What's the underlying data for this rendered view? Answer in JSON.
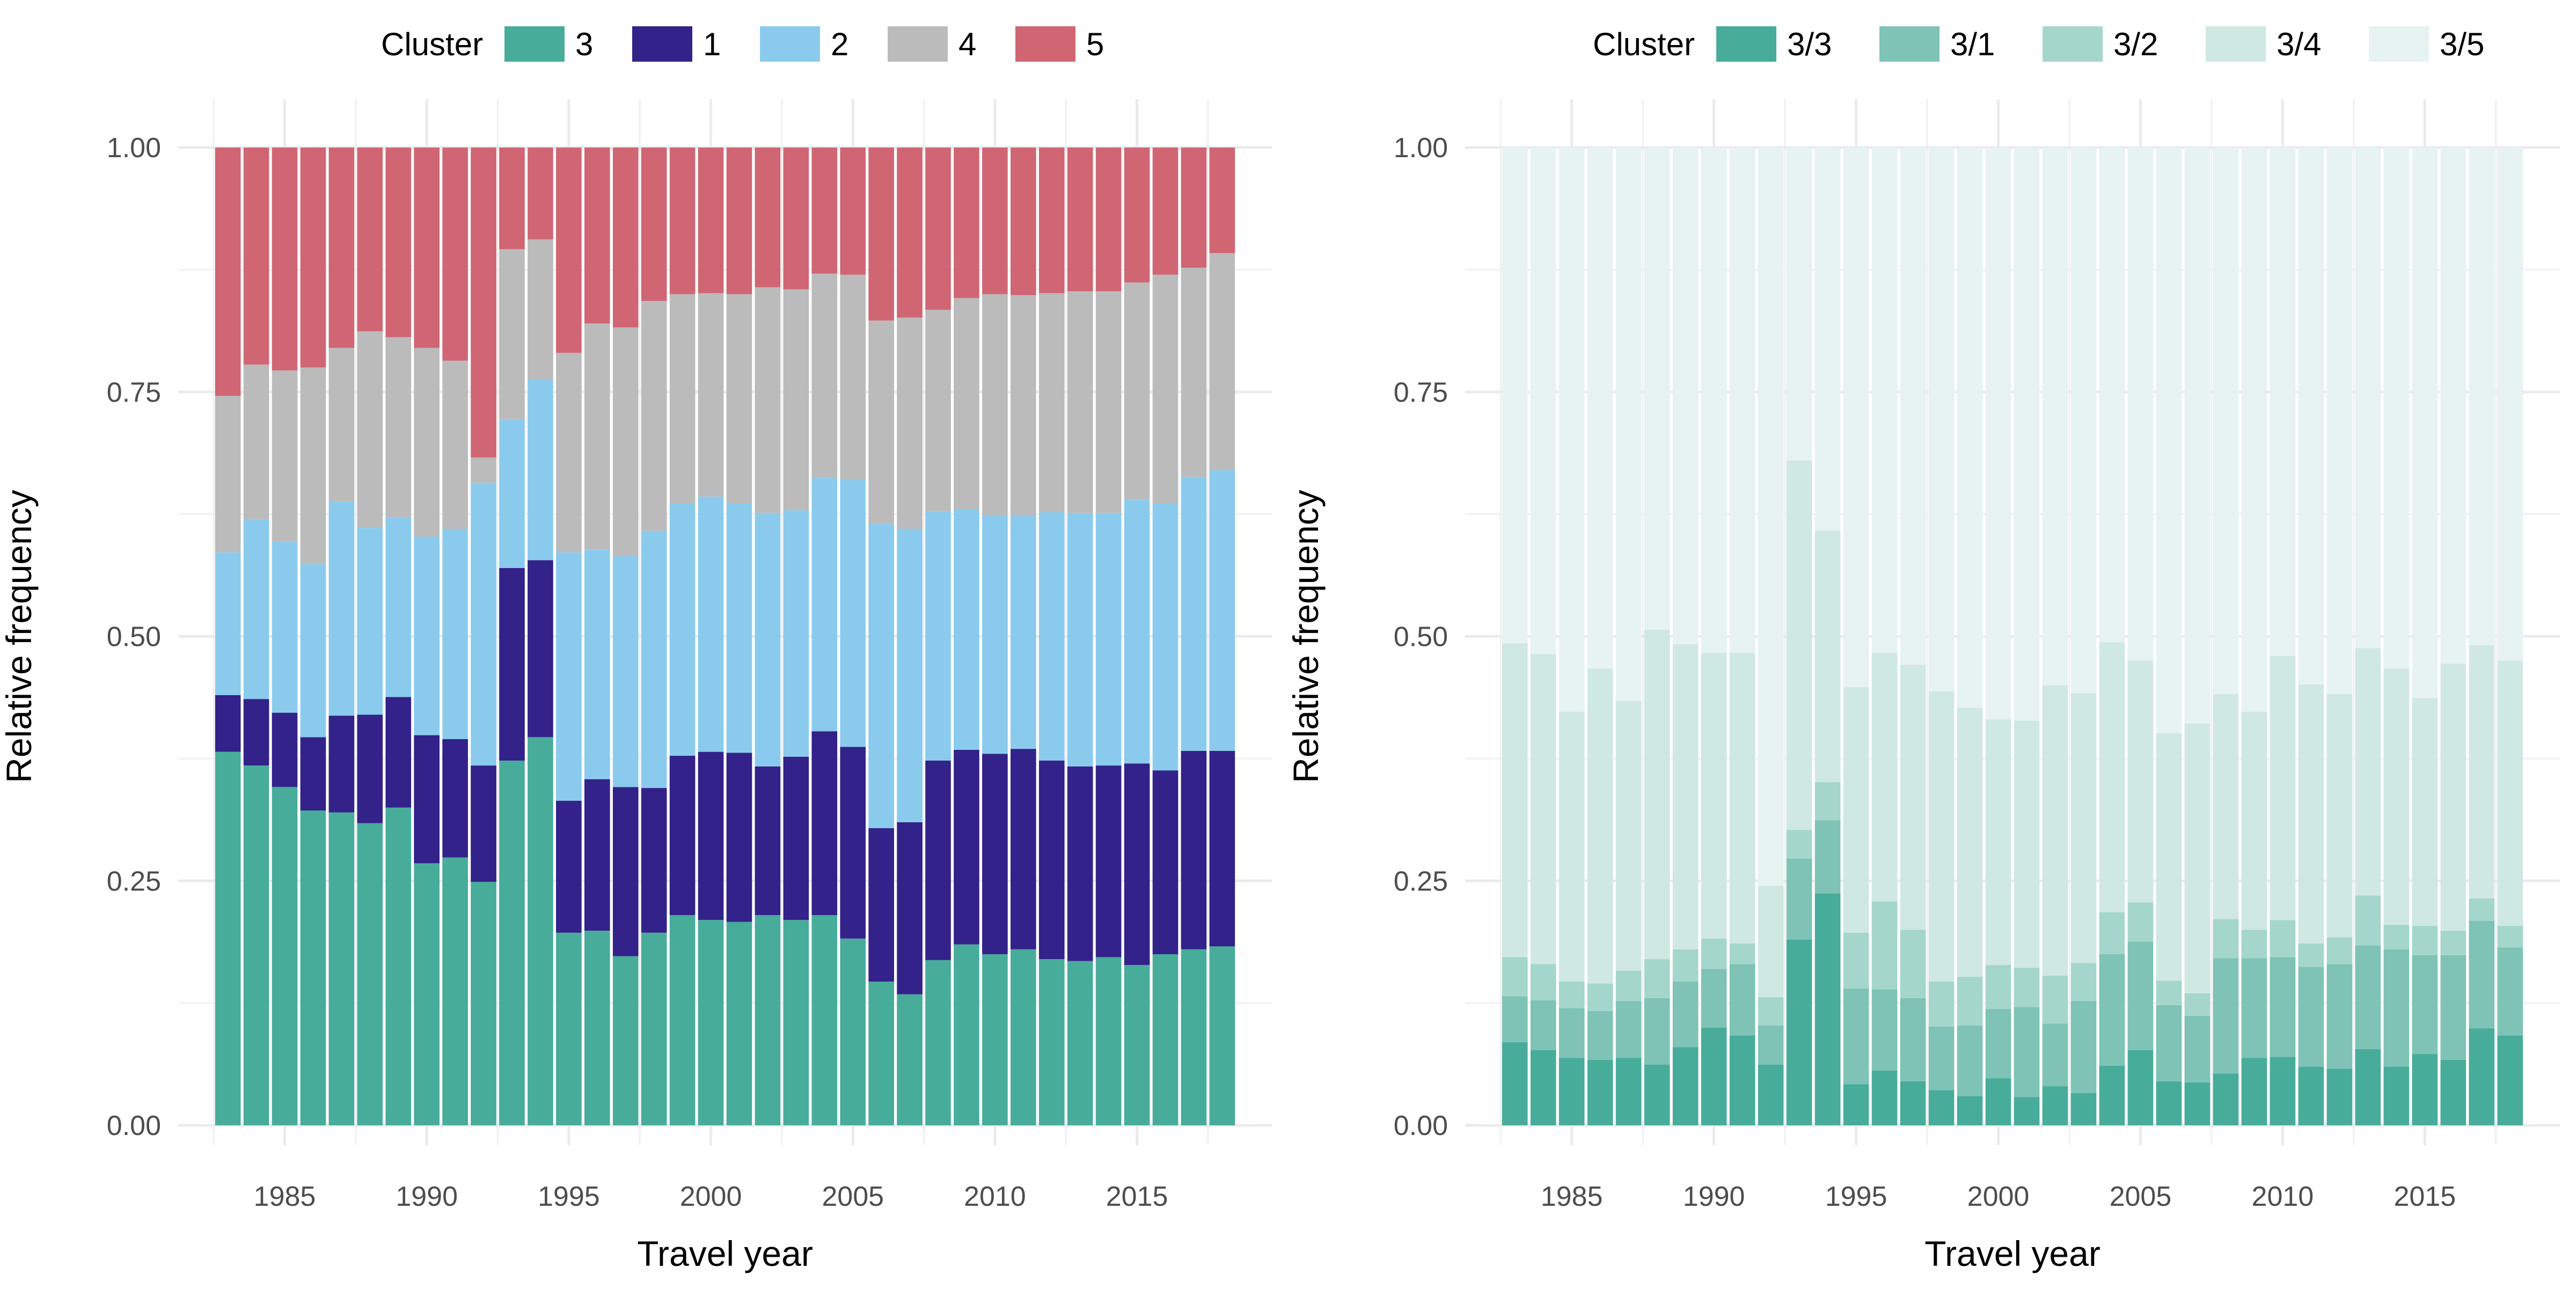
{
  "chart_data": [
    {
      "type": "bar",
      "stacked": true,
      "xlabel": "Travel year",
      "ylabel": "Relative frequency",
      "ylim": [
        0,
        1
      ],
      "y_ticks": [
        0,
        0.25,
        0.5,
        0.75,
        1
      ],
      "y_tick_labels": [
        "0.00",
        "0.25",
        "0.50",
        "0.75",
        "1.00"
      ],
      "x_ticks": [
        1985,
        1990,
        1995,
        2000,
        2005,
        2010,
        2015
      ],
      "x_tick_labels": [
        "1985",
        "1990",
        "1995",
        "2000",
        "2005",
        "2010",
        "2015"
      ],
      "grid": true,
      "legend_placement": "top",
      "legend_title": "Cluster",
      "legend_order": [
        "3",
        "1",
        "2",
        "4",
        "5"
      ],
      "x": [
        1983,
        1984,
        1985,
        1986,
        1987,
        1988,
        1989,
        1990,
        1991,
        1992,
        1993,
        1994,
        1995,
        1996,
        1997,
        1998,
        1999,
        2000,
        2001,
        2002,
        2003,
        2004,
        2005,
        2006,
        2007,
        2008,
        2009,
        2010,
        2011,
        2012,
        2013,
        2014,
        2015,
        2016,
        2017,
        2018
      ],
      "series": [
        {
          "name": "3",
          "color": "#48ac9b",
          "values": [
            0.382,
            0.368,
            0.346,
            0.322,
            0.32,
            0.309,
            0.325,
            0.268,
            0.274,
            0.249,
            0.373,
            0.397,
            0.197,
            0.199,
            0.173,
            0.197,
            0.215,
            0.21,
            0.208,
            0.215,
            0.21,
            0.215,
            0.191,
            0.147,
            0.134,
            0.169,
            0.185,
            0.175,
            0.18,
            0.17,
            0.168,
            0.172,
            0.164,
            0.175,
            0.18,
            0.183
          ]
        },
        {
          "name": "1",
          "color": "#33228a",
          "values": [
            0.058,
            0.068,
            0.076,
            0.075,
            0.099,
            0.111,
            0.113,
            0.131,
            0.121,
            0.119,
            0.197,
            0.181,
            0.135,
            0.155,
            0.173,
            0.148,
            0.163,
            0.172,
            0.173,
            0.152,
            0.167,
            0.188,
            0.196,
            0.157,
            0.176,
            0.204,
            0.199,
            0.205,
            0.205,
            0.203,
            0.199,
            0.196,
            0.206,
            0.188,
            0.203,
            0.2
          ]
        },
        {
          "name": "2",
          "color": "#8acbed",
          "values": [
            0.146,
            0.184,
            0.175,
            0.177,
            0.219,
            0.191,
            0.184,
            0.203,
            0.215,
            0.289,
            0.152,
            0.185,
            0.254,
            0.235,
            0.236,
            0.263,
            0.258,
            0.261,
            0.255,
            0.259,
            0.252,
            0.259,
            0.274,
            0.311,
            0.3,
            0.255,
            0.246,
            0.244,
            0.239,
            0.254,
            0.259,
            0.258,
            0.27,
            0.273,
            0.28,
            0.287
          ]
        },
        {
          "name": "4",
          "color": "#bbbbbb",
          "values": [
            0.16,
            0.158,
            0.175,
            0.201,
            0.157,
            0.201,
            0.184,
            0.193,
            0.172,
            0.026,
            0.174,
            0.143,
            0.204,
            0.231,
            0.234,
            0.235,
            0.214,
            0.208,
            0.214,
            0.231,
            0.226,
            0.209,
            0.209,
            0.208,
            0.216,
            0.206,
            0.216,
            0.226,
            0.225,
            0.224,
            0.227,
            0.227,
            0.222,
            0.234,
            0.214,
            0.222
          ]
        },
        {
          "name": "5",
          "color": "#d06674",
          "values": [
            0.254,
            0.222,
            0.228,
            0.225,
            0.205,
            0.188,
            0.194,
            0.205,
            0.218,
            0.317,
            0.104,
            0.094,
            0.21,
            0.18,
            0.184,
            0.157,
            0.15,
            0.149,
            0.15,
            0.143,
            0.145,
            0.129,
            0.13,
            0.177,
            0.174,
            0.166,
            0.154,
            0.15,
            0.151,
            0.149,
            0.147,
            0.147,
            0.138,
            0.13,
            0.123,
            0.108
          ]
        }
      ]
    },
    {
      "type": "bar",
      "stacked": true,
      "xlabel": "Travel year",
      "ylabel": "Relative frequency",
      "ylim": [
        0,
        1
      ],
      "y_ticks": [
        0,
        0.25,
        0.5,
        0.75,
        1
      ],
      "y_tick_labels": [
        "0.00",
        "0.25",
        "0.50",
        "0.75",
        "1.00"
      ],
      "x_ticks": [
        1985,
        1990,
        1995,
        2000,
        2005,
        2010,
        2015
      ],
      "x_tick_labels": [
        "1985",
        "1990",
        "1995",
        "2000",
        "2005",
        "2010",
        "2015"
      ],
      "grid": true,
      "legend_placement": "top",
      "legend_title": "Cluster",
      "legend_order": [
        "3/3",
        "3/1",
        "3/2",
        "3/4",
        "3/5"
      ],
      "x": [
        1983,
        1984,
        1985,
        1986,
        1987,
        1988,
        1989,
        1990,
        1991,
        1992,
        1993,
        1994,
        1995,
        1996,
        1997,
        1998,
        1999,
        2000,
        2001,
        2002,
        2003,
        2004,
        2005,
        2006,
        2007,
        2008,
        2009,
        2010,
        2011,
        2012,
        2013,
        2014,
        2015,
        2016,
        2017,
        2018
      ],
      "series": [
        {
          "name": "3/3",
          "color": "#48ac9b",
          "values": [
            0.085,
            0.077,
            0.069,
            0.067,
            0.069,
            0.062,
            0.08,
            0.1,
            0.092,
            0.062,
            0.19,
            0.237,
            0.042,
            0.056,
            0.045,
            0.036,
            0.03,
            0.048,
            0.029,
            0.04,
            0.033,
            0.061,
            0.077,
            0.045,
            0.044,
            0.053,
            0.069,
            0.07,
            0.06,
            0.058,
            0.078,
            0.06,
            0.073,
            0.067,
            0.099,
            0.092
          ]
        },
        {
          "name": "3/1",
          "color": "#7ec3b5",
          "values": [
            0.047,
            0.051,
            0.051,
            0.05,
            0.058,
            0.068,
            0.067,
            0.06,
            0.073,
            0.04,
            0.083,
            0.075,
            0.098,
            0.083,
            0.085,
            0.065,
            0.072,
            0.071,
            0.092,
            0.064,
            0.094,
            0.114,
            0.111,
            0.078,
            0.068,
            0.118,
            0.102,
            0.102,
            0.102,
            0.107,
            0.106,
            0.12,
            0.101,
            0.107,
            0.11,
            0.09
          ]
        },
        {
          "name": "3/2",
          "color": "#a5d6cb",
          "values": [
            0.04,
            0.037,
            0.027,
            0.028,
            0.031,
            0.04,
            0.033,
            0.031,
            0.021,
            0.029,
            0.029,
            0.039,
            0.057,
            0.09,
            0.07,
            0.046,
            0.05,
            0.045,
            0.04,
            0.049,
            0.039,
            0.043,
            0.04,
            0.025,
            0.023,
            0.04,
            0.029,
            0.038,
            0.024,
            0.027,
            0.051,
            0.025,
            0.03,
            0.025,
            0.023,
            0.022
          ]
        },
        {
          "name": "3/4",
          "color": "#cfe8e2",
          "values": [
            0.321,
            0.317,
            0.276,
            0.322,
            0.276,
            0.337,
            0.312,
            0.292,
            0.297,
            0.114,
            0.378,
            0.257,
            0.251,
            0.254,
            0.271,
            0.297,
            0.275,
            0.251,
            0.253,
            0.297,
            0.276,
            0.276,
            0.247,
            0.253,
            0.276,
            0.23,
            0.223,
            0.27,
            0.265,
            0.249,
            0.253,
            0.262,
            0.233,
            0.273,
            0.259,
            0.271
          ]
        },
        {
          "name": "3/5",
          "color": "#e6f3f0",
          "values": [
            0.507,
            0.518,
            0.577,
            0.533,
            0.566,
            0.493,
            0.508,
            0.517,
            0.517,
            0.755,
            0.32,
            0.392,
            0.552,
            0.517,
            0.529,
            0.556,
            0.573,
            0.585,
            0.586,
            0.55,
            0.558,
            0.506,
            0.525,
            0.599,
            0.589,
            0.559,
            0.577,
            0.52,
            0.549,
            0.559,
            0.512,
            0.533,
            0.563,
            0.528,
            0.509,
            0.525
          ]
        }
      ]
    }
  ]
}
